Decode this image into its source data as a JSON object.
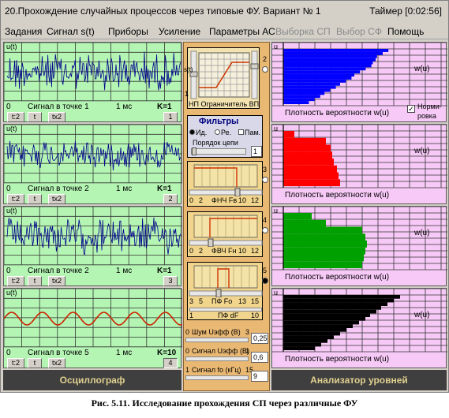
{
  "window": {
    "title": "20.Прохождение случайных процессов через типовые ФУ.   Вариант № 1",
    "timer": "Таймер [0:02:56]"
  },
  "menu": [
    "Задания",
    "Сигнал s(t)",
    "Приборы",
    "Усиление",
    "Параметры АС",
    "Выборка СП",
    "Выбор СФ",
    "Помощь"
  ],
  "menu_disabled": [
    false,
    false,
    false,
    false,
    false,
    true,
    true,
    false
  ],
  "oscilloscope": {
    "band_label": "Осциллограф",
    "ylabel": "u(t)",
    "time_label": "1 мс",
    "zero_label": "0",
    "buttons": [
      "t:2",
      "t",
      "tx2"
    ],
    "channels": [
      {
        "label": "Сигнал в точке 1",
        "gain": "K=1",
        "number": "1"
      },
      {
        "label": "Сигнал в точке 2",
        "gain": "K=1",
        "number": "2"
      },
      {
        "label": "Сигнал в точке 2",
        "gain": "K=1",
        "number": "3"
      },
      {
        "label": "Сигнал в точке 5",
        "gain": "K=10",
        "number": "4"
      }
    ],
    "colors": {
      "noise": "#00008b",
      "sine": "#cc2200",
      "background": "#b4f5b4"
    }
  },
  "middle": {
    "limiter": {
      "label": "НП Ограничитель ВП",
      "input_label": "s(t)",
      "left_tick": "1",
      "right_tick": "2"
    },
    "filters": {
      "title": "Фильтры",
      "options": [
        "Ид.",
        "Ре.",
        "Пам."
      ],
      "order_label": "Порядок цепи",
      "order_value": "1",
      "lpf": {
        "label": "ФНЧ Fв",
        "ticks": [
          "0",
          "2",
          "10",
          "12"
        ],
        "point": "3"
      },
      "hpf": {
        "label": "ФВЧ Fн",
        "ticks": [
          "0",
          "2",
          "10",
          "12"
        ],
        "point": "4"
      },
      "bpf": {
        "label": "ПФ Fо",
        "ticks": [
          "3",
          "5",
          "13",
          "15"
        ],
        "point": "5",
        "df_label": "ПФ dF",
        "df_ticks": [
          "1",
          "10"
        ]
      }
    },
    "controls": [
      {
        "label": "Шум Uэфф (В)",
        "min": "0",
        "max": "3",
        "value": "0,25"
      },
      {
        "label": "Сигнал Uэфф (В)",
        "min": "0",
        "max": "1",
        "value": "0,6"
      },
      {
        "label": "Сигнал fo (кГц)",
        "min": "1",
        "max": "15",
        "value": "9"
      }
    ]
  },
  "analyzer": {
    "band_label": "Анализатор уровней",
    "wlabel": "w(u)",
    "ulabel": "u",
    "checkbox_label_1": "Норми-",
    "checkbox_label_2": "ровка",
    "checkbox_checked": true,
    "panels": [
      {
        "label": "Плотность вероятности  w(u)",
        "color": "#0000ff"
      },
      {
        "label": "Плотность вероятности  w(u)",
        "color": "#ff0000"
      },
      {
        "label": "Плотность вероятности  w(u)",
        "color": "#00a000"
      },
      {
        "label": "Плотность вероятности  w(u)",
        "color": "#000000"
      }
    ]
  },
  "caption": "Рис. 5.11. Исследование прохождения СП через различные ФУ"
}
